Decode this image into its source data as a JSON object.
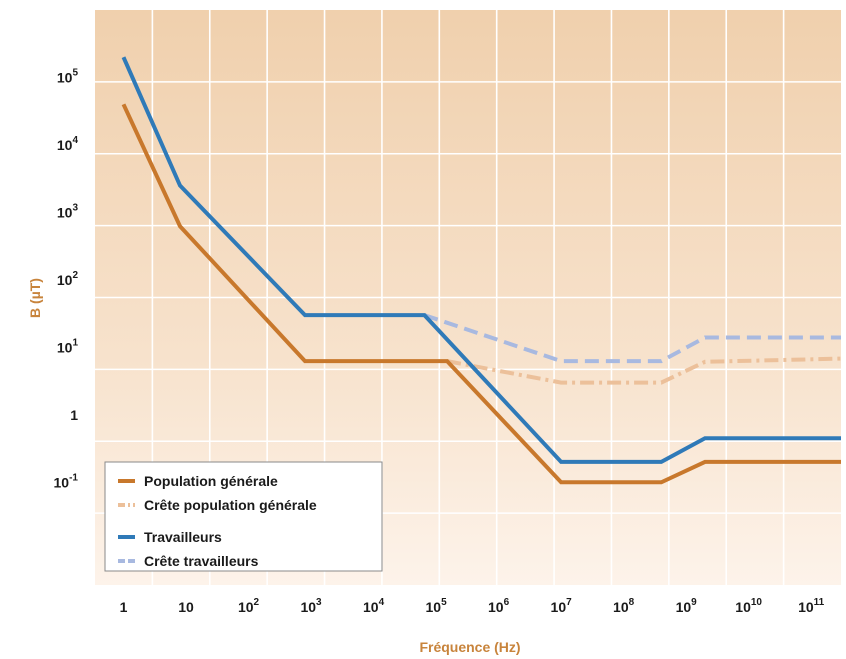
{
  "chart_data": {
    "type": "line",
    "title": "",
    "xlabel": "Fréquence (Hz)",
    "ylabel": "B (µT)",
    "x_scale": "log",
    "y_scale": "log",
    "xlim": [
      0.35,
      300000000000
    ],
    "ylim": [
      0.003,
      1000000
    ],
    "x_ticks": [
      {
        "value": 1,
        "base": "1",
        "exp": ""
      },
      {
        "value": 10,
        "base": "10",
        "exp": ""
      },
      {
        "value": 100,
        "base": "10",
        "exp": "2"
      },
      {
        "value": 1000,
        "base": "10",
        "exp": "3"
      },
      {
        "value": 10000,
        "base": "10",
        "exp": "4"
      },
      {
        "value": 100000,
        "base": "10",
        "exp": "5"
      },
      {
        "value": 1000000,
        "base": "10",
        "exp": "6"
      },
      {
        "value": 10000000,
        "base": "10",
        "exp": "7"
      },
      {
        "value": 100000000,
        "base": "10",
        "exp": "8"
      },
      {
        "value": 1000000000,
        "base": "10",
        "exp": "9"
      },
      {
        "value": 10000000000,
        "base": "10",
        "exp": "10"
      },
      {
        "value": 100000000000,
        "base": "10",
        "exp": "11"
      }
    ],
    "y_ticks": [
      {
        "value": 0.1,
        "base": "10",
        "exp": "-1"
      },
      {
        "value": 1,
        "base": "1",
        "exp": ""
      },
      {
        "value": 10,
        "base": "10",
        "exp": "1"
      },
      {
        "value": 100,
        "base": "10",
        "exp": "2"
      },
      {
        "value": 1000,
        "base": "10",
        "exp": "3"
      },
      {
        "value": 10000,
        "base": "10",
        "exp": "4"
      },
      {
        "value": 100000,
        "base": "10",
        "exp": "5"
      }
    ],
    "grid": true,
    "legend_position": "bottom-left",
    "series": [
      {
        "name": "Population générale",
        "color": "#c8782c",
        "style": "solid",
        "points": [
          [
            1,
            40000
          ],
          [
            8,
            625
          ],
          [
            800,
            6.25
          ],
          [
            150000,
            6.25
          ],
          [
            10000000,
            0.1
          ],
          [
            400000000,
            0.1
          ],
          [
            2000000000,
            0.2
          ],
          [
            300000000000,
            0.2
          ]
        ]
      },
      {
        "name": "Crête population générale",
        "color": "#ecc09a",
        "style": "dashdot",
        "points": [
          [
            150000,
            6.25
          ],
          [
            10000000,
            3
          ],
          [
            400000000,
            3
          ],
          [
            2000000000,
            6.1
          ],
          [
            300000000000,
            6.8
          ]
        ]
      },
      {
        "name": "Travailleurs",
        "color": "#2f7ab8",
        "style": "solid",
        "points": [
          [
            1,
            200000
          ],
          [
            8,
            2500
          ],
          [
            800,
            30
          ],
          [
            65000,
            30
          ],
          [
            10000000,
            0.2
          ],
          [
            400000000,
            0.2
          ],
          [
            2000000000,
            0.45
          ],
          [
            300000000000,
            0.45
          ]
        ]
      },
      {
        "name": "Crête travailleurs",
        "color": "#a8b9e0",
        "style": "dashed",
        "points": [
          [
            65000,
            30
          ],
          [
            10000000,
            6.25
          ],
          [
            400000000,
            6.25
          ],
          [
            2000000000,
            14
          ],
          [
            300000000000,
            14
          ]
        ]
      }
    ]
  }
}
